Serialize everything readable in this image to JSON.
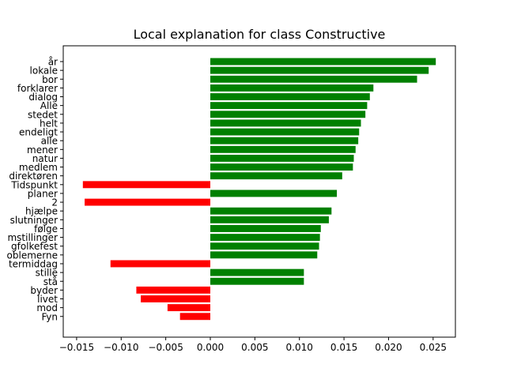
{
  "chart_data": {
    "type": "bar",
    "orientation": "horizontal",
    "title": "Local explanation for class Constructive",
    "xlabel": "",
    "ylabel": "",
    "xlim": [
      -0.0165,
      0.0275
    ],
    "xticks": [
      -0.015,
      -0.01,
      -0.005,
      0.0,
      0.005,
      0.01,
      0.015,
      0.02,
      0.025
    ],
    "xtick_labels": [
      "−0.015",
      "−0.010",
      "−0.005",
      "0.000",
      "0.005",
      "0.010",
      "0.015",
      "0.020",
      "0.025"
    ],
    "grid": false,
    "positive_color": "#008000",
    "negative_color": "#ff0000",
    "categories": [
      "år",
      "lokale",
      "bor",
      "forklarer",
      "dialog",
      "Alle",
      "stedet",
      "helt",
      "endeligt",
      "alle",
      "mener",
      "natur",
      "medlem",
      "direktøren",
      "Tidspunkt",
      "planer",
      "2",
      "hjælpe",
      "slutninger",
      "følge",
      "mstillinger",
      "gfolkefest",
      "oblemerne",
      "termiddag",
      "stille",
      "stå",
      "byder",
      "livet",
      "mod",
      "Fyn"
    ],
    "values": [
      0.0253,
      0.0245,
      0.0232,
      0.0183,
      0.0179,
      0.0176,
      0.0174,
      0.0169,
      0.0167,
      0.0166,
      0.0163,
      0.0161,
      0.016,
      0.0148,
      -0.0143,
      0.0142,
      -0.0141,
      0.0136,
      0.0133,
      0.0124,
      0.0123,
      0.0122,
      0.012,
      -0.0112,
      0.0105,
      0.0105,
      -0.0083,
      -0.0078,
      -0.0048,
      -0.0034
    ]
  }
}
